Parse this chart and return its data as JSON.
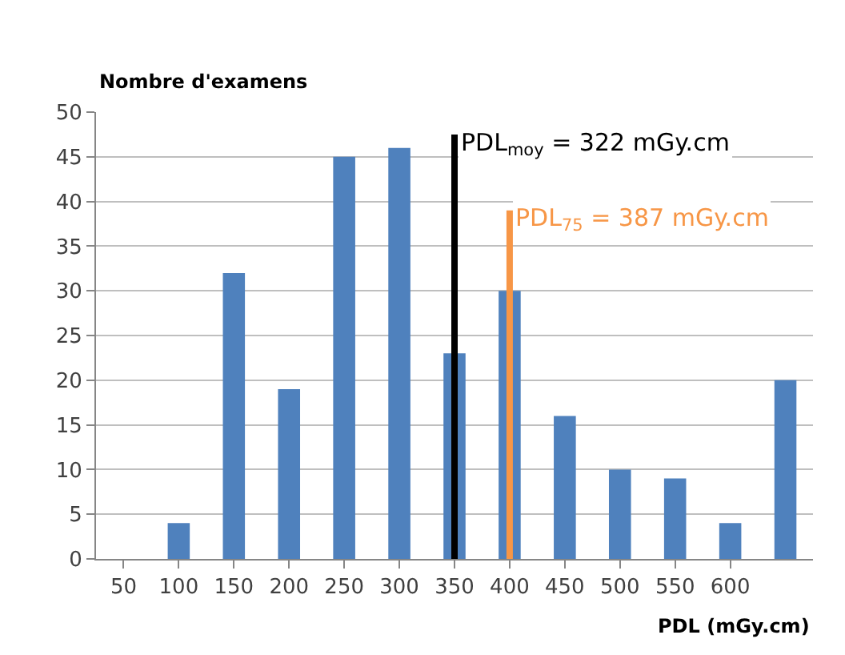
{
  "chart_data": {
    "type": "bar",
    "ylabel": "Nombre d'examens",
    "xlabel": "PDL (mGy.cm)",
    "categories": [
      "50",
      "100",
      "150",
      "200",
      "250",
      "300",
      "350",
      "400",
      "450",
      "500",
      "550",
      "600",
      null
    ],
    "values": [
      0,
      4,
      32,
      19,
      45,
      46,
      23,
      30,
      16,
      10,
      9,
      4,
      20
    ],
    "color": "#4f81bd",
    "ylim": [
      0,
      50
    ],
    "yticks": [
      0,
      5,
      10,
      15,
      20,
      25,
      30,
      35,
      40,
      45,
      50
    ],
    "grid": "y",
    "ref_lines": [
      {
        "axis": "x",
        "value": "350",
        "label": "PDL$_{moy}$ = 322 mGy.cm",
        "color": "#000000"
      },
      {
        "axis": "x",
        "value": "400",
        "label": "PDL$_{75}$ = 387 mGy.cm",
        "color": "#f79646"
      }
    ]
  }
}
